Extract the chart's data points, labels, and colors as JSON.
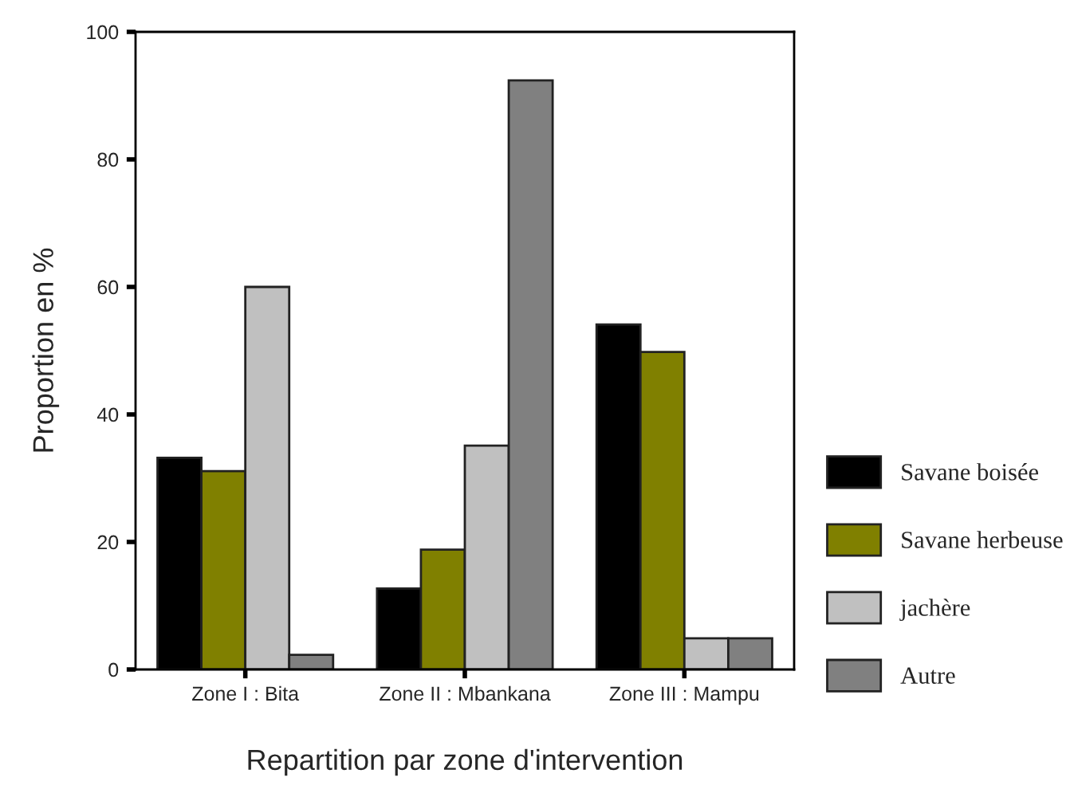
{
  "chart_data": {
    "type": "bar",
    "xlabel": "Repartition par zone d'intervention",
    "ylabel": "Proportion en %",
    "categories": [
      "Zone I : Bita",
      "Zone II : Mbankana",
      "Zone III : Mampu"
    ],
    "series": [
      {
        "name": "Savane boisée",
        "color": "#000000",
        "values": [
          33.2,
          12.7,
          54.1
        ]
      },
      {
        "name": "Savane herbeuse",
        "color": "#808000",
        "values": [
          31.1,
          18.8,
          49.8
        ]
      },
      {
        "name": "jachère",
        "color": "#c0c0c0",
        "values": [
          60,
          35.1,
          4.9
        ]
      },
      {
        "name": "Autre",
        "color": "#808080",
        "values": [
          2.3,
          92.4,
          4.9
        ]
      }
    ],
    "ylim": [
      0,
      100
    ],
    "yticks": [
      0,
      20,
      40,
      60,
      80,
      100
    ],
    "grid": false,
    "legend": "right"
  }
}
